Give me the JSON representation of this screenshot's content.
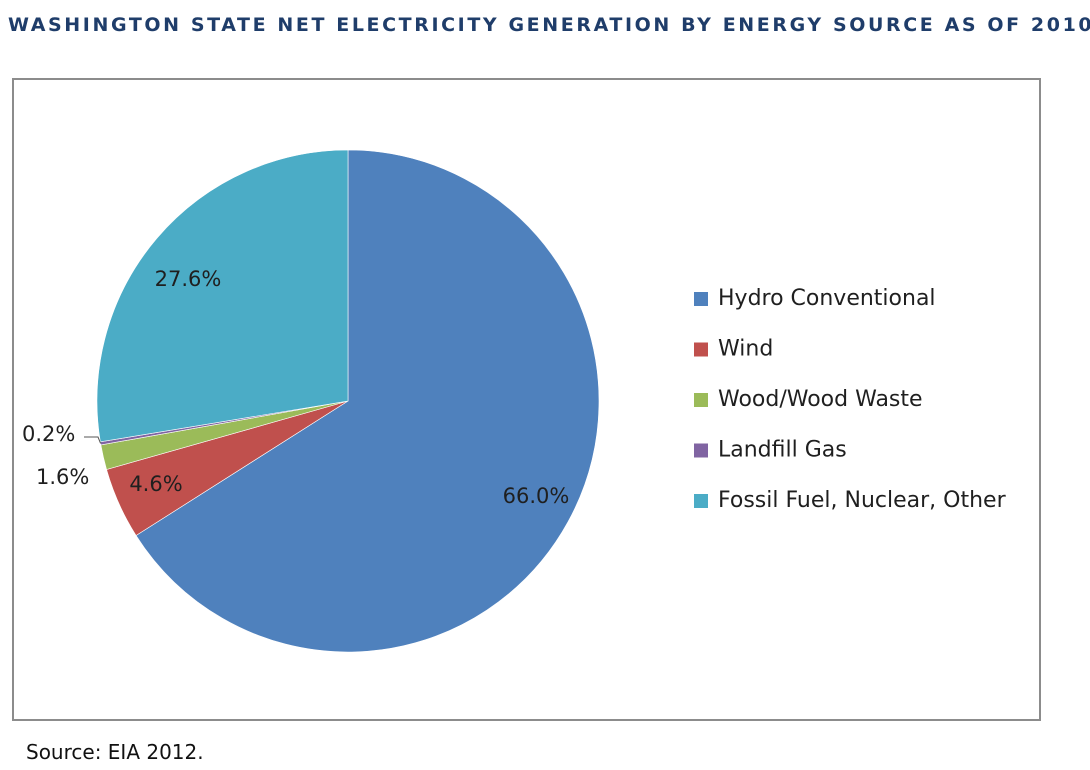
{
  "header": {
    "title": "WASHINGTON STATE NET ELECTRICITY GENERATION BY ENERGY SOURCE AS OF 2010"
  },
  "footer": {
    "source": "Source: EIA 2012."
  },
  "chart_data": {
    "type": "pie",
    "title": "WASHINGTON STATE NET ELECTRICITY GENERATION BY ENERGY SOURCE AS OF 2010",
    "start": "12 o'clock",
    "direction": "clockwise",
    "legend_position": "right",
    "slices": [
      {
        "name": "Hydro Conventional",
        "value": 66.0,
        "label": "66.0%",
        "color": "#4f81bd"
      },
      {
        "name": "Wind",
        "value": 4.6,
        "label": "4.6%",
        "color": "#c0504d"
      },
      {
        "name": "Wood/Wood Waste",
        "value": 1.6,
        "label": "1.6%",
        "color": "#9bbb59"
      },
      {
        "name": "Landfill Gas",
        "value": 0.2,
        "label": "0.2%",
        "color": "#8064a2"
      },
      {
        "name": "Fossil Fuel, Nuclear, Other",
        "value": 27.6,
        "label": "27.6%",
        "color": "#4bacc6"
      }
    ]
  }
}
